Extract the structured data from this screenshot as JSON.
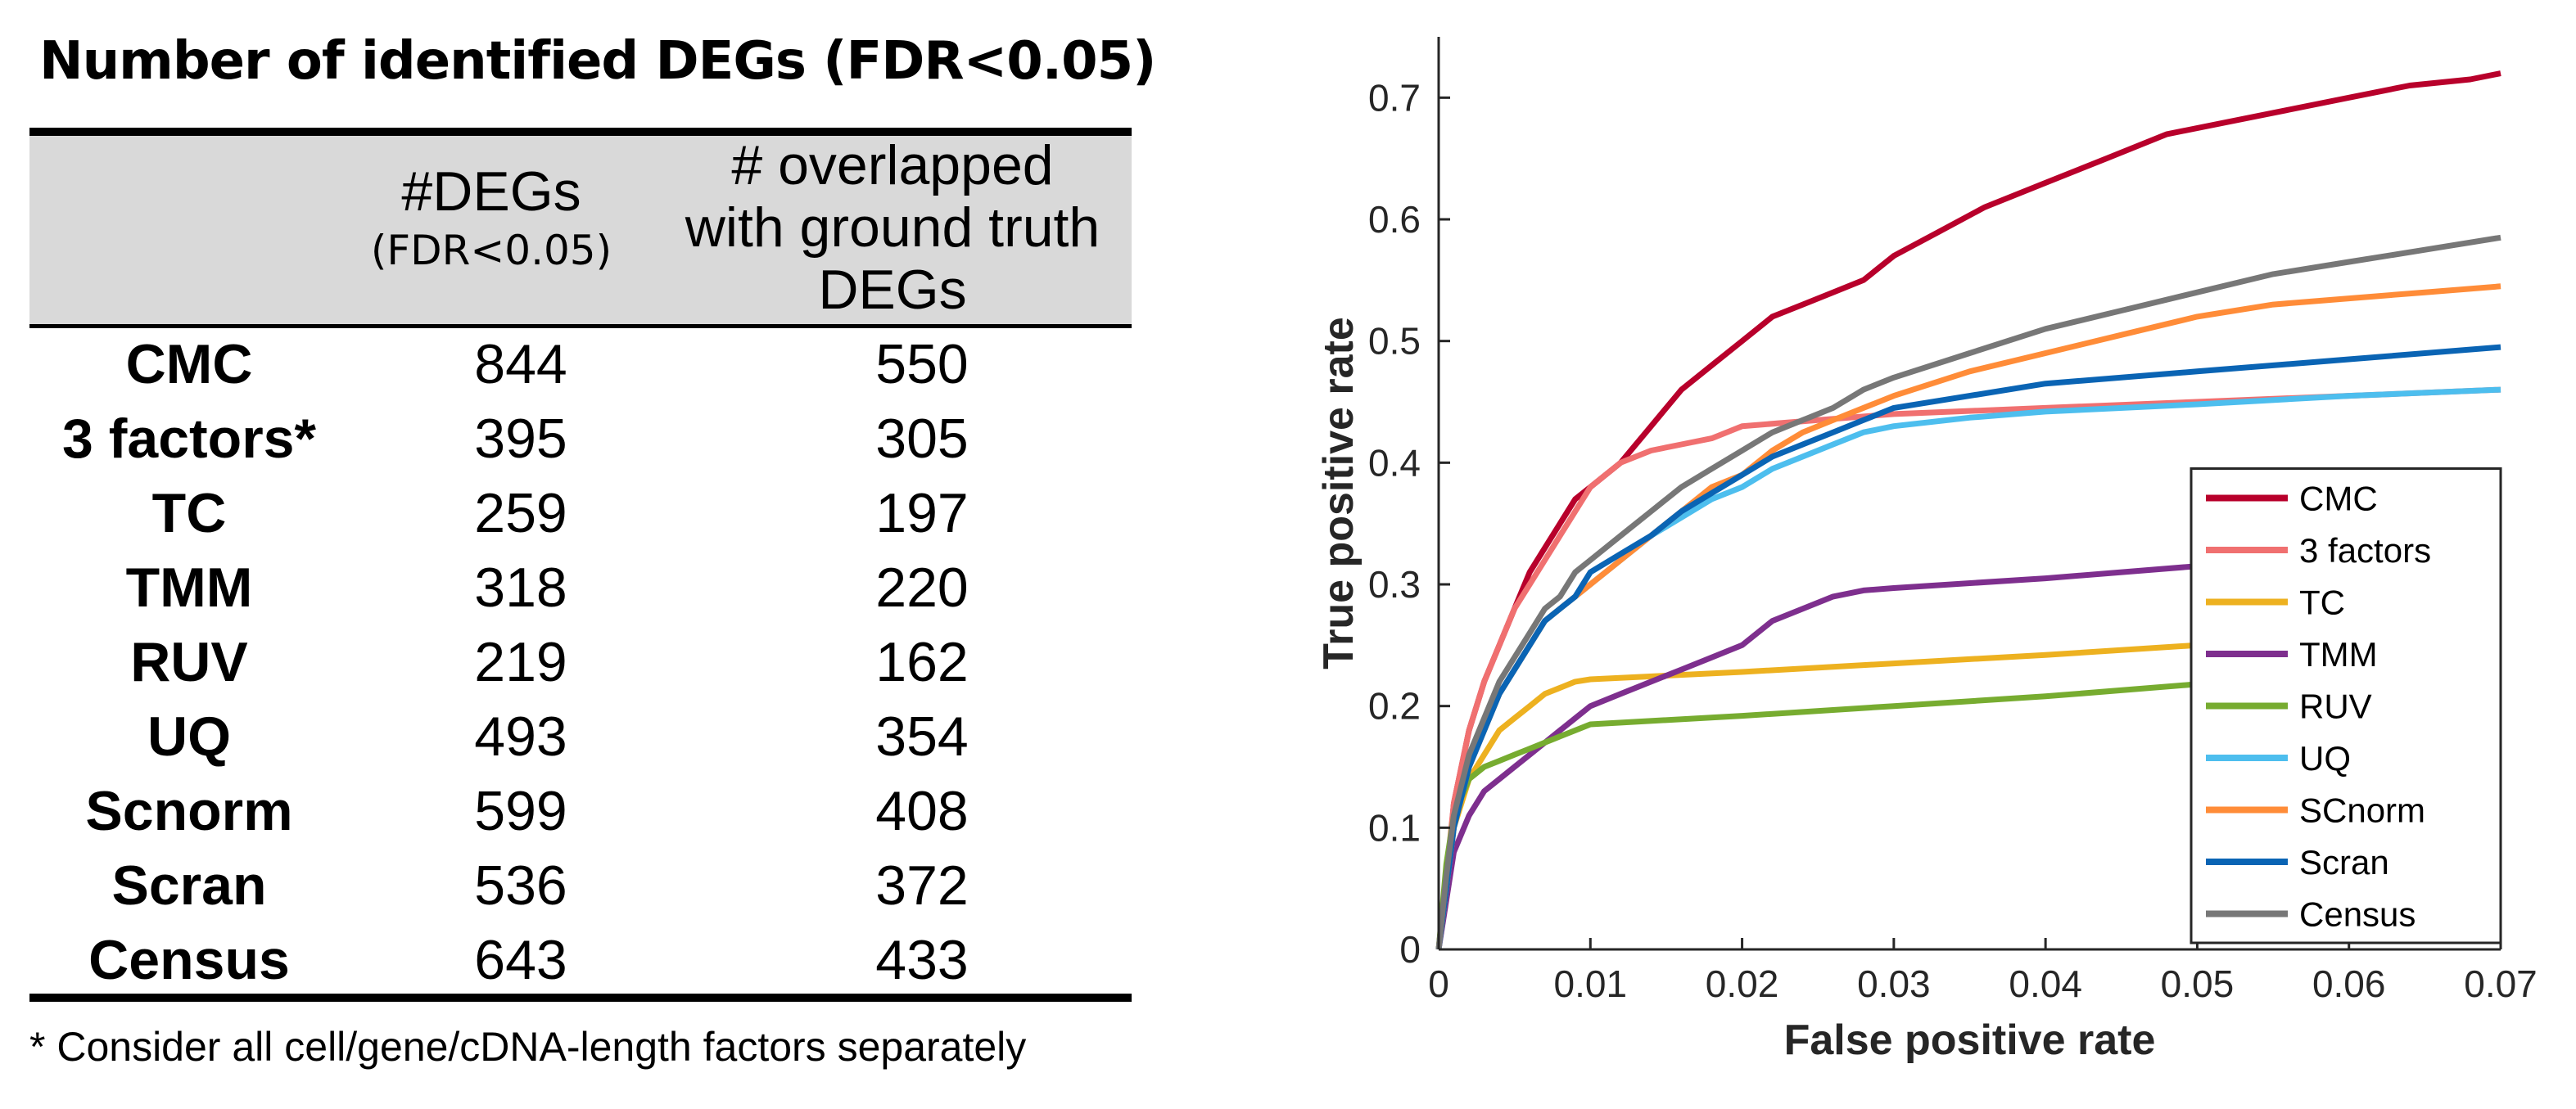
{
  "table": {
    "title": "Number of identified DEGs (FDR<0.05)",
    "col_degs": "#DEGs",
    "col_degs_sub": "(FDR<0.05)",
    "col_overlap_lines": [
      "# overlapped",
      "with ground truth",
      "DEGs"
    ],
    "rows": [
      {
        "method": "CMC",
        "degs": "844",
        "overlap": "550"
      },
      {
        "method": "3 factors*",
        "degs": "395",
        "overlap": "305"
      },
      {
        "method": "TC",
        "degs": "259",
        "overlap": "197"
      },
      {
        "method": "TMM",
        "degs": "318",
        "overlap": "220"
      },
      {
        "method": "RUV",
        "degs": "219",
        "overlap": "162"
      },
      {
        "method": "UQ",
        "degs": "493",
        "overlap": "354"
      },
      {
        "method": "Scnorm",
        "degs": "599",
        "overlap": "408"
      },
      {
        "method": "Scran",
        "degs": "536",
        "overlap": "372"
      },
      {
        "method": "Census",
        "degs": "643",
        "overlap": "433"
      }
    ],
    "footnote": "* Consider all cell/gene/cDNA-length factors separately"
  },
  "chart_data": {
    "type": "line",
    "title": "",
    "xlabel": "False positive rate",
    "ylabel": "True positive rate",
    "xlim": [
      0,
      0.07
    ],
    "ylim": [
      0,
      0.75
    ],
    "xticks": [
      0,
      0.01,
      0.02,
      0.03,
      0.04,
      0.05,
      0.06,
      0.07
    ],
    "xtick_labels": [
      "0",
      "0.01",
      "0.02",
      "0.03",
      "0.04",
      "0.05",
      "0.06",
      "0.07"
    ],
    "yticks": [
      0,
      0.1,
      0.2,
      0.3,
      0.4,
      0.5,
      0.6,
      0.7
    ],
    "ytick_labels": [
      "0",
      "0.1",
      "0.2",
      "0.3",
      "0.4",
      "0.5",
      "0.6",
      "0.7"
    ],
    "grid": false,
    "legend_position": "bottom-right",
    "series": [
      {
        "name": "CMC",
        "color": "#b8002b",
        "x": [
          0,
          0.0005,
          0.001,
          0.002,
          0.003,
          0.004,
          0.005,
          0.006,
          0.007,
          0.008,
          0.009,
          0.01,
          0.012,
          0.014,
          0.016,
          0.018,
          0.02,
          0.022,
          0.024,
          0.026,
          0.028,
          0.03,
          0.033,
          0.036,
          0.04,
          0.044,
          0.048,
          0.052,
          0.056,
          0.06,
          0.064,
          0.068,
          0.07
        ],
        "y": [
          0,
          0.05,
          0.12,
          0.18,
          0.22,
          0.25,
          0.28,
          0.31,
          0.33,
          0.35,
          0.37,
          0.38,
          0.4,
          0.43,
          0.46,
          0.48,
          0.5,
          0.52,
          0.53,
          0.54,
          0.55,
          0.57,
          0.59,
          0.61,
          0.63,
          0.65,
          0.67,
          0.68,
          0.69,
          0.7,
          0.71,
          0.715,
          0.72
        ]
      },
      {
        "name": "3 factors",
        "color": "#f07070",
        "x": [
          0,
          0.0005,
          0.001,
          0.002,
          0.003,
          0.004,
          0.005,
          0.006,
          0.007,
          0.008,
          0.009,
          0.01,
          0.011,
          0.012,
          0.014,
          0.016,
          0.018,
          0.02,
          0.025,
          0.03,
          0.04,
          0.05,
          0.06,
          0.07
        ],
        "y": [
          0,
          0.06,
          0.12,
          0.18,
          0.22,
          0.25,
          0.28,
          0.3,
          0.32,
          0.34,
          0.36,
          0.38,
          0.39,
          0.4,
          0.41,
          0.415,
          0.42,
          0.43,
          0.435,
          0.44,
          0.445,
          0.45,
          0.455,
          0.46
        ]
      },
      {
        "name": "TC",
        "color": "#edb120",
        "x": [
          0,
          0.0005,
          0.001,
          0.002,
          0.003,
          0.004,
          0.005,
          0.006,
          0.007,
          0.008,
          0.009,
          0.01,
          0.02,
          0.03,
          0.04,
          0.05,
          0.06,
          0.07
        ],
        "y": [
          0,
          0.06,
          0.1,
          0.14,
          0.16,
          0.18,
          0.19,
          0.2,
          0.21,
          0.215,
          0.22,
          0.222,
          0.228,
          0.235,
          0.242,
          0.25,
          0.258,
          0.265
        ]
      },
      {
        "name": "TMM",
        "color": "#7e2f8e",
        "x": [
          0,
          0.0005,
          0.001,
          0.002,
          0.003,
          0.004,
          0.005,
          0.006,
          0.007,
          0.008,
          0.009,
          0.01,
          0.012,
          0.014,
          0.016,
          0.018,
          0.02,
          0.022,
          0.024,
          0.026,
          0.028,
          0.03,
          0.04,
          0.05,
          0.06,
          0.07
        ],
        "y": [
          0,
          0.04,
          0.08,
          0.11,
          0.13,
          0.14,
          0.15,
          0.16,
          0.17,
          0.18,
          0.19,
          0.2,
          0.21,
          0.22,
          0.23,
          0.24,
          0.25,
          0.27,
          0.28,
          0.29,
          0.295,
          0.297,
          0.305,
          0.315,
          0.32,
          0.325
        ]
      },
      {
        "name": "RUV",
        "color": "#77ac30",
        "x": [
          0,
          0.0005,
          0.001,
          0.002,
          0.003,
          0.004,
          0.005,
          0.006,
          0.007,
          0.008,
          0.009,
          0.01,
          0.02,
          0.03,
          0.04,
          0.05,
          0.06,
          0.07
        ],
        "y": [
          0,
          0.07,
          0.11,
          0.14,
          0.15,
          0.155,
          0.16,
          0.165,
          0.17,
          0.175,
          0.18,
          0.185,
          0.192,
          0.2,
          0.208,
          0.218,
          0.228,
          0.238
        ]
      },
      {
        "name": "UQ",
        "color": "#4dbeee",
        "x": [
          0,
          0.0005,
          0.001,
          0.002,
          0.003,
          0.004,
          0.005,
          0.006,
          0.007,
          0.008,
          0.009,
          0.01,
          0.012,
          0.014,
          0.016,
          0.018,
          0.02,
          0.022,
          0.024,
          0.026,
          0.028,
          0.03,
          0.035,
          0.04,
          0.05,
          0.06,
          0.07
        ],
        "y": [
          0,
          0.05,
          0.1,
          0.15,
          0.18,
          0.21,
          0.23,
          0.25,
          0.27,
          0.28,
          0.29,
          0.3,
          0.32,
          0.34,
          0.355,
          0.37,
          0.38,
          0.395,
          0.405,
          0.415,
          0.425,
          0.43,
          0.437,
          0.442,
          0.448,
          0.455,
          0.46
        ]
      },
      {
        "name": "SCnorm",
        "color": "#ff8c38",
        "x": [
          0,
          0.0005,
          0.001,
          0.002,
          0.003,
          0.004,
          0.005,
          0.006,
          0.007,
          0.008,
          0.009,
          0.01,
          0.012,
          0.014,
          0.016,
          0.018,
          0.02,
          0.022,
          0.024,
          0.026,
          0.028,
          0.03,
          0.035,
          0.04,
          0.045,
          0.05,
          0.055,
          0.06,
          0.065,
          0.07
        ],
        "y": [
          0,
          0.05,
          0.1,
          0.15,
          0.18,
          0.21,
          0.23,
          0.25,
          0.27,
          0.28,
          0.29,
          0.3,
          0.32,
          0.34,
          0.36,
          0.38,
          0.39,
          0.41,
          0.425,
          0.435,
          0.445,
          0.455,
          0.475,
          0.49,
          0.505,
          0.52,
          0.53,
          0.535,
          0.54,
          0.545
        ]
      },
      {
        "name": "Scran",
        "color": "#0a64b4",
        "x": [
          0,
          0.0005,
          0.001,
          0.002,
          0.003,
          0.004,
          0.005,
          0.006,
          0.007,
          0.008,
          0.009,
          0.01,
          0.012,
          0.014,
          0.016,
          0.018,
          0.02,
          0.022,
          0.024,
          0.026,
          0.028,
          0.03,
          0.035,
          0.04,
          0.05,
          0.06,
          0.07
        ],
        "y": [
          0,
          0.05,
          0.1,
          0.15,
          0.18,
          0.21,
          0.23,
          0.25,
          0.27,
          0.28,
          0.29,
          0.31,
          0.325,
          0.34,
          0.36,
          0.375,
          0.39,
          0.405,
          0.415,
          0.425,
          0.435,
          0.445,
          0.455,
          0.465,
          0.475,
          0.485,
          0.495
        ]
      },
      {
        "name": "Census",
        "color": "#777777",
        "x": [
          0,
          0.0005,
          0.001,
          0.002,
          0.003,
          0.004,
          0.005,
          0.006,
          0.007,
          0.008,
          0.009,
          0.01,
          0.012,
          0.014,
          0.016,
          0.018,
          0.02,
          0.022,
          0.024,
          0.026,
          0.028,
          0.03,
          0.035,
          0.04,
          0.045,
          0.05,
          0.055,
          0.06,
          0.065,
          0.07
        ],
        "y": [
          0,
          0.06,
          0.11,
          0.16,
          0.19,
          0.22,
          0.24,
          0.26,
          0.28,
          0.29,
          0.31,
          0.32,
          0.34,
          0.36,
          0.38,
          0.395,
          0.41,
          0.425,
          0.435,
          0.445,
          0.46,
          0.47,
          0.49,
          0.51,
          0.525,
          0.54,
          0.555,
          0.565,
          0.575,
          0.585
        ]
      }
    ]
  }
}
